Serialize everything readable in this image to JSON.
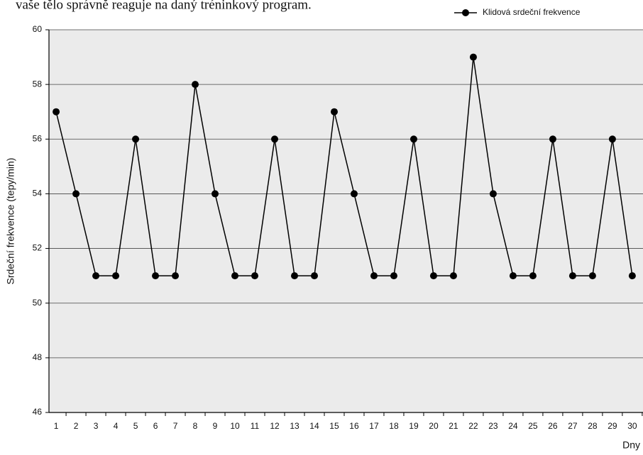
{
  "chart_data": {
    "type": "line",
    "caption": "vaše tělo správně reaguje na daný tréninkový program.",
    "y_label": "Srdeční frekvence (tepy/min)",
    "x_label": "Dny",
    "x": [
      1,
      2,
      3,
      4,
      5,
      6,
      7,
      8,
      9,
      10,
      11,
      12,
      13,
      14,
      15,
      16,
      17,
      18,
      19,
      20,
      21,
      22,
      23,
      24,
      25,
      26,
      27,
      28,
      29,
      30
    ],
    "xlim": [
      0.64,
      30.54
    ],
    "xticks": [
      1,
      2,
      3,
      4,
      5,
      6,
      7,
      8,
      9,
      10,
      11,
      12,
      13,
      14,
      15,
      16,
      17,
      18,
      19,
      20,
      21,
      22,
      23,
      24,
      25,
      26,
      27,
      28,
      29,
      30
    ],
    "ylim": [
      46,
      60
    ],
    "yticks": [
      46,
      48,
      50,
      52,
      54,
      56,
      58,
      60
    ],
    "grid": true,
    "legend": "top-right",
    "series": [
      {
        "name": "Klidová srdeční frekvence",
        "color": "#000000",
        "values": [
          57,
          54,
          51,
          51,
          56,
          51,
          51,
          58,
          54,
          51,
          51,
          56,
          51,
          51,
          57,
          54,
          51,
          51,
          56,
          51,
          51,
          59,
          54,
          51,
          51,
          56,
          51,
          51,
          56,
          51
        ]
      }
    ]
  }
}
